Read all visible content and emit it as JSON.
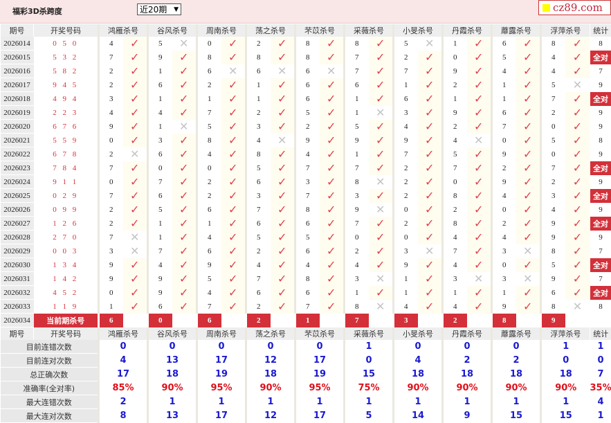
{
  "header": {
    "title": "福彩3D杀跨度",
    "period_select": "近20期",
    "logo_text": "cz89.com"
  },
  "columns": {
    "period": "期号",
    "draw": "开奖号码",
    "stat": "统计",
    "experts": [
      "鸿雁杀号",
      "谷风杀号",
      "周南杀号",
      "荡之杀号",
      "芣苡杀号",
      "采薇杀号",
      "小旻杀号",
      "丹霞杀号",
      "蘼露杀号",
      "浮萍杀号"
    ]
  },
  "colors": {
    "accent": "#d3303a",
    "check": "#e0404c",
    "cross": "#c4c4c4",
    "stat_blue": "#1a1ad0"
  },
  "rows": [
    {
      "period": "2026014",
      "draw": "0 5 0",
      "kills": [
        "4",
        "5",
        "0",
        "2",
        "8",
        "8",
        "5",
        "1",
        "6",
        "8"
      ],
      "hits": [
        1,
        0,
        1,
        1,
        1,
        1,
        0,
        1,
        1,
        1
      ],
      "stat": "8"
    },
    {
      "period": "2026015",
      "draw": "5 3 2",
      "kills": [
        "7",
        "9",
        "8",
        "8",
        "8",
        "7",
        "2",
        "0",
        "5",
        "4"
      ],
      "hits": [
        1,
        1,
        1,
        1,
        1,
        1,
        1,
        1,
        1,
        1
      ],
      "stat": "全对"
    },
    {
      "period": "2026016",
      "draw": "5 8 2",
      "kills": [
        "2",
        "1",
        "6",
        "6",
        "6",
        "7",
        "7",
        "9",
        "4",
        "4"
      ],
      "hits": [
        1,
        1,
        0,
        0,
        0,
        1,
        1,
        1,
        1,
        1
      ],
      "stat": "7"
    },
    {
      "period": "2026017",
      "draw": "9 4 5",
      "kills": [
        "2",
        "6",
        "2",
        "1",
        "6",
        "6",
        "1",
        "2",
        "1",
        "5"
      ],
      "hits": [
        1,
        1,
        1,
        1,
        1,
        1,
        1,
        1,
        1,
        0
      ],
      "stat": "9"
    },
    {
      "period": "2026018",
      "draw": "4 9 4",
      "kills": [
        "3",
        "1",
        "1",
        "1",
        "6",
        "1",
        "6",
        "1",
        "1",
        "7"
      ],
      "hits": [
        1,
        1,
        1,
        1,
        1,
        1,
        1,
        1,
        1,
        1
      ],
      "stat": "全对"
    },
    {
      "period": "2026019",
      "draw": "2 2 3",
      "kills": [
        "4",
        "4",
        "7",
        "2",
        "5",
        "1",
        "3",
        "9",
        "6",
        "2"
      ],
      "hits": [
        1,
        1,
        1,
        1,
        1,
        0,
        1,
        1,
        1,
        1
      ],
      "stat": "9"
    },
    {
      "period": "2026020",
      "draw": "6 7 6",
      "kills": [
        "9",
        "1",
        "5",
        "3",
        "2",
        "5",
        "4",
        "2",
        "7",
        "0"
      ],
      "hits": [
        1,
        0,
        1,
        1,
        1,
        1,
        1,
        1,
        1,
        1
      ],
      "stat": "9"
    },
    {
      "period": "2026021",
      "draw": "5 5 9",
      "kills": [
        "0",
        "3",
        "8",
        "4",
        "9",
        "9",
        "9",
        "4",
        "0",
        "5"
      ],
      "hits": [
        1,
        1,
        1,
        0,
        1,
        1,
        1,
        0,
        1,
        1
      ],
      "stat": "8"
    },
    {
      "period": "2026022",
      "draw": "6 7 8",
      "kills": [
        "2",
        "6",
        "4",
        "8",
        "4",
        "1",
        "7",
        "5",
        "9",
        "0"
      ],
      "hits": [
        0,
        1,
        1,
        1,
        1,
        1,
        1,
        1,
        1,
        1
      ],
      "stat": "9"
    },
    {
      "period": "2026023",
      "draw": "7 8 4",
      "kills": [
        "7",
        "0",
        "0",
        "5",
        "7",
        "7",
        "2",
        "7",
        "2",
        "7"
      ],
      "hits": [
        1,
        1,
        1,
        1,
        1,
        1,
        1,
        1,
        1,
        1
      ],
      "stat": "全对"
    },
    {
      "period": "2026024",
      "draw": "9 1 1",
      "kills": [
        "0",
        "7",
        "2",
        "6",
        "3",
        "8",
        "2",
        "0",
        "9",
        "2"
      ],
      "hits": [
        1,
        1,
        1,
        1,
        1,
        0,
        1,
        1,
        1,
        1
      ],
      "stat": "9"
    },
    {
      "period": "2026025",
      "draw": "0 2 9",
      "kills": [
        "7",
        "6",
        "2",
        "3",
        "7",
        "3",
        "2",
        "8",
        "4",
        "3"
      ],
      "hits": [
        1,
        1,
        1,
        1,
        1,
        1,
        1,
        1,
        1,
        1
      ],
      "stat": "全对"
    },
    {
      "period": "2026026",
      "draw": "0 9 9",
      "kills": [
        "2",
        "5",
        "6",
        "7",
        "8",
        "9",
        "0",
        "2",
        "0",
        "4"
      ],
      "hits": [
        1,
        1,
        1,
        1,
        1,
        0,
        1,
        1,
        1,
        1
      ],
      "stat": "9"
    },
    {
      "period": "2026027",
      "draw": "1 2 6",
      "kills": [
        "2",
        "1",
        "1",
        "6",
        "6",
        "7",
        "2",
        "8",
        "2",
        "9"
      ],
      "hits": [
        1,
        1,
        1,
        1,
        1,
        1,
        1,
        1,
        1,
        1
      ],
      "stat": "全对"
    },
    {
      "period": "2026028",
      "draw": "2 7 0",
      "kills": [
        "7",
        "1",
        "4",
        "5",
        "5",
        "0",
        "0",
        "4",
        "4",
        "9"
      ],
      "hits": [
        0,
        1,
        1,
        1,
        1,
        1,
        1,
        1,
        1,
        1
      ],
      "stat": "9"
    },
    {
      "period": "2026029",
      "draw": "0 0 3",
      "kills": [
        "3",
        "7",
        "6",
        "2",
        "6",
        "2",
        "3",
        "7",
        "3",
        "8"
      ],
      "hits": [
        0,
        1,
        1,
        1,
        1,
        1,
        0,
        1,
        0,
        1
      ],
      "stat": "7"
    },
    {
      "period": "2026030",
      "draw": "1 3 4",
      "kills": [
        "9",
        "4",
        "9",
        "4",
        "4",
        "4",
        "9",
        "4",
        "0",
        "5"
      ],
      "hits": [
        1,
        1,
        1,
        1,
        1,
        1,
        1,
        1,
        1,
        1
      ],
      "stat": "全对"
    },
    {
      "period": "2026031",
      "draw": "1 4 2",
      "kills": [
        "9",
        "9",
        "5",
        "7",
        "8",
        "3",
        "1",
        "3",
        "3",
        "9"
      ],
      "hits": [
        1,
        1,
        1,
        1,
        1,
        0,
        1,
        0,
        0,
        1
      ],
      "stat": "7"
    },
    {
      "period": "2026032",
      "draw": "4 5 2",
      "kills": [
        "0",
        "9",
        "4",
        "6",
        "6",
        "1",
        "1",
        "1",
        "1",
        "6"
      ],
      "hits": [
        1,
        1,
        1,
        1,
        1,
        1,
        1,
        1,
        1,
        1
      ],
      "stat": "全对"
    },
    {
      "period": "2026033",
      "draw": "1 1 9",
      "kills": [
        "1",
        "6",
        "7",
        "2",
        "7",
        "8",
        "4",
        "4",
        "9",
        "8"
      ],
      "hits": [
        1,
        1,
        1,
        1,
        1,
        0,
        1,
        1,
        1,
        0
      ],
      "stat": "8"
    }
  ],
  "current": {
    "period": "2026034",
    "label": "当前期杀号",
    "kills": [
      "6",
      "0",
      "6",
      "2",
      "1",
      "7",
      "3",
      "2",
      "8",
      "9"
    ]
  },
  "stats": [
    {
      "label": "目前连错次数",
      "values": [
        "0",
        "0",
        "0",
        "0",
        "0",
        "1",
        "0",
        "0",
        "0",
        "1"
      ],
      "stat": "1"
    },
    {
      "label": "目前连对次数",
      "values": [
        "4",
        "13",
        "17",
        "12",
        "17",
        "0",
        "4",
        "2",
        "2",
        "0"
      ],
      "stat": "0"
    },
    {
      "label": "总正确次数",
      "values": [
        "17",
        "18",
        "19",
        "18",
        "19",
        "15",
        "18",
        "18",
        "18",
        "18"
      ],
      "stat": "7"
    },
    {
      "label": "准确率(全对率)",
      "values": [
        "85%",
        "90%",
        "95%",
        "90%",
        "95%",
        "75%",
        "90%",
        "90%",
        "90%",
        "90%"
      ],
      "stat": "35%",
      "pct": true
    },
    {
      "label": "最大连错次数",
      "values": [
        "2",
        "1",
        "1",
        "1",
        "1",
        "1",
        "1",
        "1",
        "1",
        "1"
      ],
      "stat": "4"
    },
    {
      "label": "最大连对次数",
      "values": [
        "8",
        "13",
        "17",
        "12",
        "17",
        "5",
        "14",
        "9",
        "15",
        "15"
      ],
      "stat": "1"
    }
  ]
}
